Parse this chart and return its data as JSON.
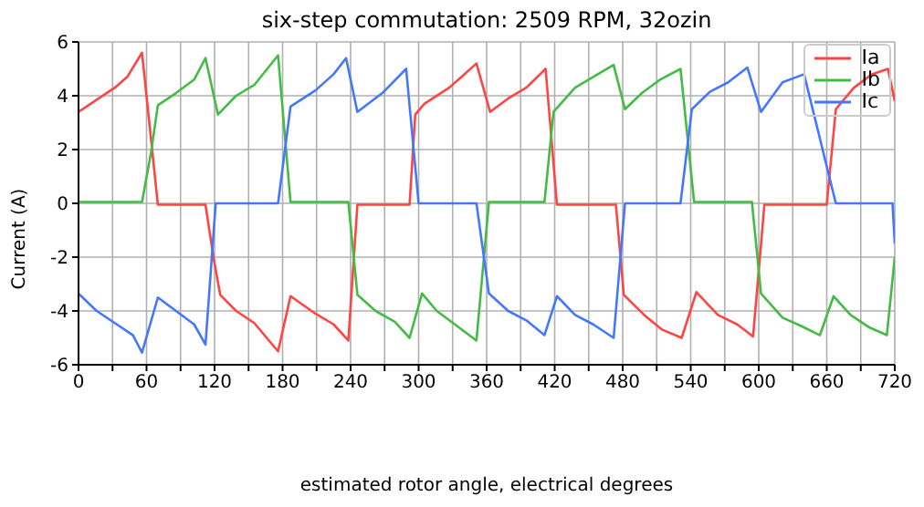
{
  "chart_data": {
    "type": "line",
    "title": "six-step commutation: 2509 RPM, 32ozin",
    "xlabel": "estimated rotor angle, electrical degrees",
    "ylabel": "Current (A)",
    "xlim": [
      0,
      720
    ],
    "ylim": [
      -6,
      6
    ],
    "xticks": [
      0,
      {
        "value": 30,
        "label": null
      },
      60,
      {
        "value": 90,
        "label": null
      },
      120,
      {
        "value": 150,
        "label": null
      },
      180,
      {
        "value": 210,
        "label": null
      },
      240,
      {
        "value": 270,
        "label": null
      },
      300,
      {
        "value": 330,
        "label": null
      },
      360,
      {
        "value": 390,
        "label": null
      },
      420,
      {
        "value": 450,
        "label": null
      },
      480,
      {
        "value": 510,
        "label": null
      },
      540,
      {
        "value": 570,
        "label": null
      },
      600,
      {
        "value": 630,
        "label": null
      },
      660,
      {
        "value": 690,
        "label": null
      },
      720
    ],
    "yticks": [
      -6,
      -4,
      -2,
      0,
      2,
      4,
      6
    ],
    "grid": true,
    "legend": "top right",
    "marker": "none",
    "line_style": "solid",
    "series": [
      {
        "name": "Ia",
        "color": "#ff4444",
        "x": [
          0,
          16,
          32,
          43,
          56,
          70,
          112,
          119,
          125,
          139,
          155,
          176,
          187,
          209,
          225,
          238,
          246,
          292,
          297,
          305,
          327,
          351,
          363,
          379,
          395,
          412,
          422,
          474,
          481,
          499,
          515,
          532,
          545,
          564,
          581,
          595,
          605,
          660,
          668,
          684,
          700,
          714,
          720
        ],
        "values": [
          3.4,
          3.85,
          4.3,
          4.7,
          5.6,
          -0.05,
          -0.05,
          -2,
          -3.4,
          -4,
          -4.45,
          -5.5,
          -3.45,
          -4.1,
          -4.5,
          -5.1,
          -0.05,
          -0.05,
          3.3,
          3.7,
          4.3,
          5.2,
          3.4,
          3.9,
          4.3,
          5,
          -0.05,
          -0.05,
          -3.4,
          -4.15,
          -4.7,
          -5,
          -3.3,
          -4.15,
          -4.5,
          -4.95,
          -0.05,
          -0.05,
          3.5,
          4.3,
          4.8,
          5,
          3.8
        ]
      },
      {
        "name": "Ib",
        "color": "#44bb44",
        "x": [
          0,
          56,
          64,
          70,
          86,
          102,
          112,
          123,
          139,
          155,
          176,
          187,
          238,
          246,
          262,
          279,
          292,
          303,
          316,
          332,
          351,
          362,
          411,
          419,
          438,
          454,
          472,
          482,
          497,
          513,
          531,
          543,
          594,
          602,
          621,
          637,
          654,
          666,
          681,
          697,
          713,
          720
        ],
        "values": [
          0.05,
          0.05,
          1.9,
          3.65,
          4.1,
          4.6,
          5.4,
          3.3,
          4,
          4.4,
          5.5,
          0.05,
          0.05,
          -3.4,
          -4,
          -4.4,
          -5,
          -3.35,
          -4,
          -4.5,
          -5.1,
          0.05,
          0.05,
          3.4,
          4.3,
          4.7,
          5.15,
          3.5,
          4.1,
          4.6,
          5,
          0.05,
          0.05,
          -3.35,
          -4.25,
          -4.55,
          -4.9,
          -3.45,
          -4.15,
          -4.6,
          -4.9,
          -2
        ]
      },
      {
        "name": "Ic",
        "color": "#4477ff",
        "x": [
          0,
          16,
          32,
          48,
          56,
          70,
          86,
          102,
          112,
          121,
          176,
          187,
          209,
          225,
          236,
          246,
          268,
          289,
          300,
          351,
          362,
          379,
          395,
          411,
          422,
          438,
          454,
          472,
          482,
          531,
          541,
          557,
          573,
          590,
          602,
          621,
          640,
          668,
          718,
          720
        ],
        "values": [
          -3.35,
          -4,
          -4.45,
          -4.9,
          -5.55,
          -3.5,
          -4,
          -4.5,
          -5.25,
          0,
          0,
          3.6,
          4.2,
          4.8,
          5.4,
          3.4,
          4.1,
          5,
          0,
          0,
          -3.35,
          -4,
          -4.35,
          -4.9,
          -3.45,
          -4.15,
          -4.5,
          -5,
          0,
          0,
          3.5,
          4.15,
          4.5,
          5.05,
          3.4,
          4.5,
          4.8,
          0,
          0,
          -1.5
        ]
      }
    ]
  }
}
